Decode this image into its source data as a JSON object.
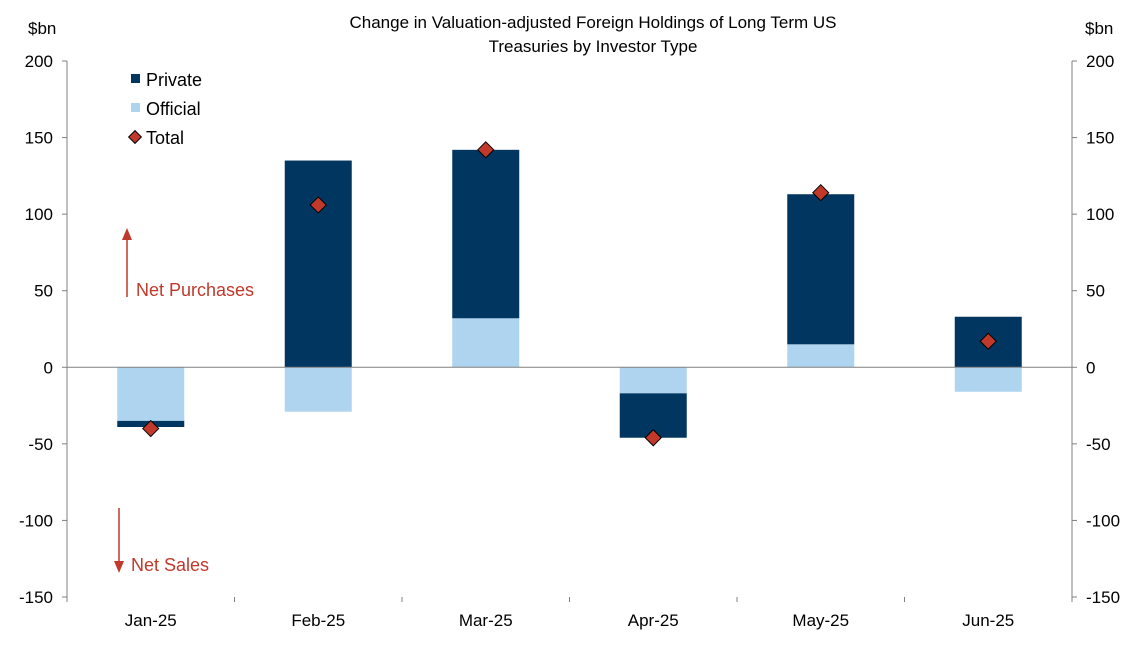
{
  "chart_data": {
    "type": "bar",
    "title": "Change in Valuation-adjusted Foreign Holdings of Long Term US",
    "subtitle": "Treasuries by Investor Type",
    "ylabel_left": "$bn",
    "ylabel_right": "$bn",
    "categories": [
      "Jan-25",
      "Feb-25",
      "Mar-25",
      "Apr-25",
      "May-25",
      "Jun-25"
    ],
    "ylim": [
      -150,
      200
    ],
    "yticks": [
      -150,
      -100,
      -50,
      0,
      50,
      100,
      150,
      200
    ],
    "stacked": true,
    "series": [
      {
        "name": "Private",
        "kind": "bar",
        "color": "#003660",
        "values": [
          -4,
          135,
          110,
          -29,
          98,
          33
        ]
      },
      {
        "name": "Official",
        "kind": "bar",
        "color": "#aed4f0",
        "values": [
          -35,
          -29,
          32,
          -17,
          15,
          -16
        ]
      },
      {
        "name": "Total",
        "kind": "marker",
        "color": "#c0392b",
        "values": [
          -40,
          106,
          142,
          -46,
          114,
          17
        ]
      }
    ],
    "legend_position": "top-left",
    "grid": false,
    "annotations": [
      {
        "text": "Net Purchases",
        "direction": "up"
      },
      {
        "text": "Net Sales",
        "direction": "down"
      }
    ]
  }
}
